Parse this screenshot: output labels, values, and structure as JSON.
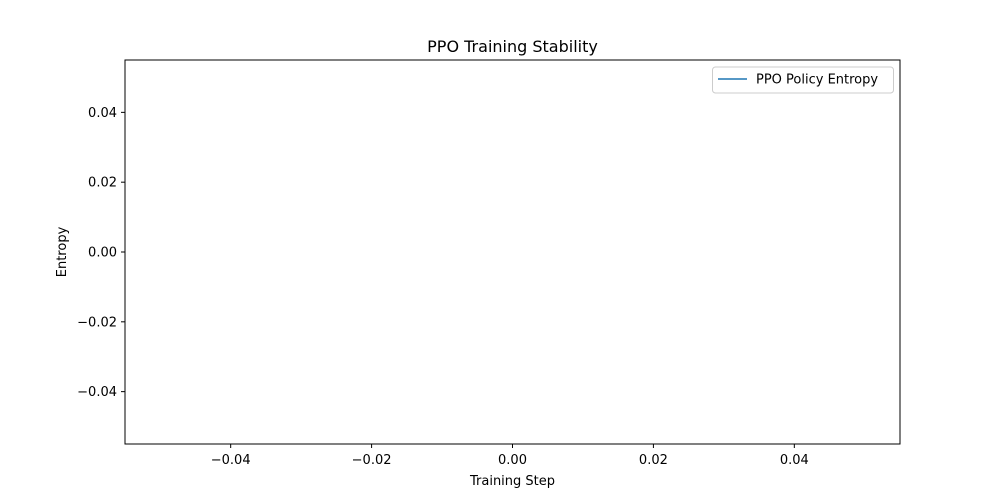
{
  "chart_data": {
    "type": "line",
    "title": "PPO Training Stability",
    "xlabel": "Training Step",
    "ylabel": "Entropy",
    "xlim": [
      -0.055,
      0.055
    ],
    "ylim": [
      -0.055,
      0.055
    ],
    "xticks": [
      -0.04,
      -0.02,
      0.0,
      0.02,
      0.04
    ],
    "xtick_labels": [
      "−0.04",
      "−0.02",
      "0.00",
      "0.02",
      "0.04"
    ],
    "yticks": [
      -0.04,
      -0.02,
      0.0,
      0.02,
      0.04
    ],
    "ytick_labels": [
      "−0.04",
      "−0.02",
      "0.00",
      "0.02",
      "0.04"
    ],
    "grid": false,
    "legend_position": "top-right",
    "series": [
      {
        "name": "PPO Policy Entropy",
        "color": "#1f77b4",
        "x": [],
        "y": []
      }
    ]
  }
}
